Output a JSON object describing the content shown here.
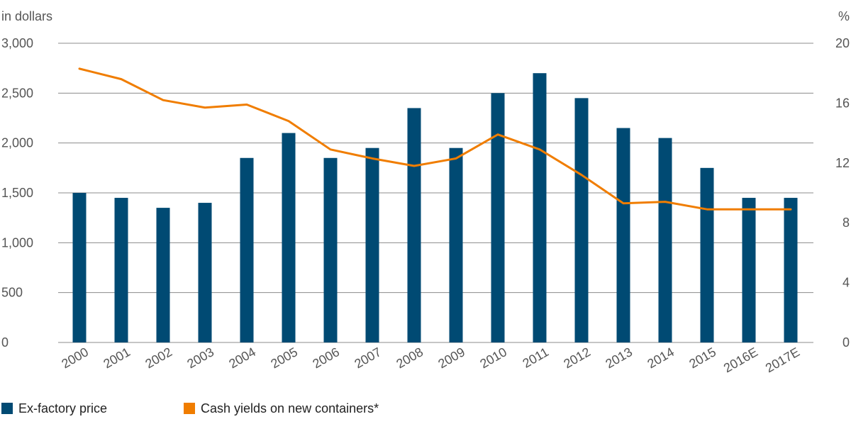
{
  "chart_data": {
    "type": "bar",
    "left_axis_unit": "in dollars",
    "right_axis_unit": "%",
    "categories": [
      "2000",
      "2001",
      "2002",
      "2003",
      "2004",
      "2005",
      "2006",
      "2007",
      "2008",
      "2009",
      "2010",
      "2011",
      "2012",
      "2013",
      "2014",
      "2015",
      "2016E",
      "2017E"
    ],
    "left_axis": {
      "min": 0,
      "max": 3000,
      "ticks": [
        0,
        500,
        1000,
        1500,
        2000,
        2500,
        3000
      ],
      "tick_labels": [
        "0",
        "500",
        "1,000",
        "1,500",
        "2,000",
        "2,500",
        "3,000"
      ]
    },
    "right_axis": {
      "min": 0,
      "max": 20,
      "ticks": [
        0,
        4,
        8,
        12,
        16,
        20
      ],
      "tick_labels": [
        "0",
        "4",
        "8",
        "12",
        "16",
        "20"
      ]
    },
    "grid": true,
    "series": [
      {
        "name": "Ex-factory price",
        "kind": "bar",
        "axis": "left",
        "color": "#004a73",
        "values": [
          1500,
          1450,
          1350,
          1400,
          1850,
          2100,
          1850,
          1950,
          2350,
          1950,
          2500,
          2700,
          2450,
          2150,
          2050,
          1750,
          1450,
          1450
        ]
      },
      {
        "name": "Cash yields on new containers*",
        "kind": "line",
        "axis": "right",
        "color": "#f07d00",
        "values": [
          18.3,
          17.6,
          16.2,
          15.7,
          15.9,
          14.8,
          12.9,
          12.3,
          11.8,
          12.3,
          13.9,
          12.9,
          11.2,
          9.3,
          9.4,
          8.9,
          8.9,
          8.9
        ]
      }
    ],
    "legend_position": "bottom-left"
  }
}
